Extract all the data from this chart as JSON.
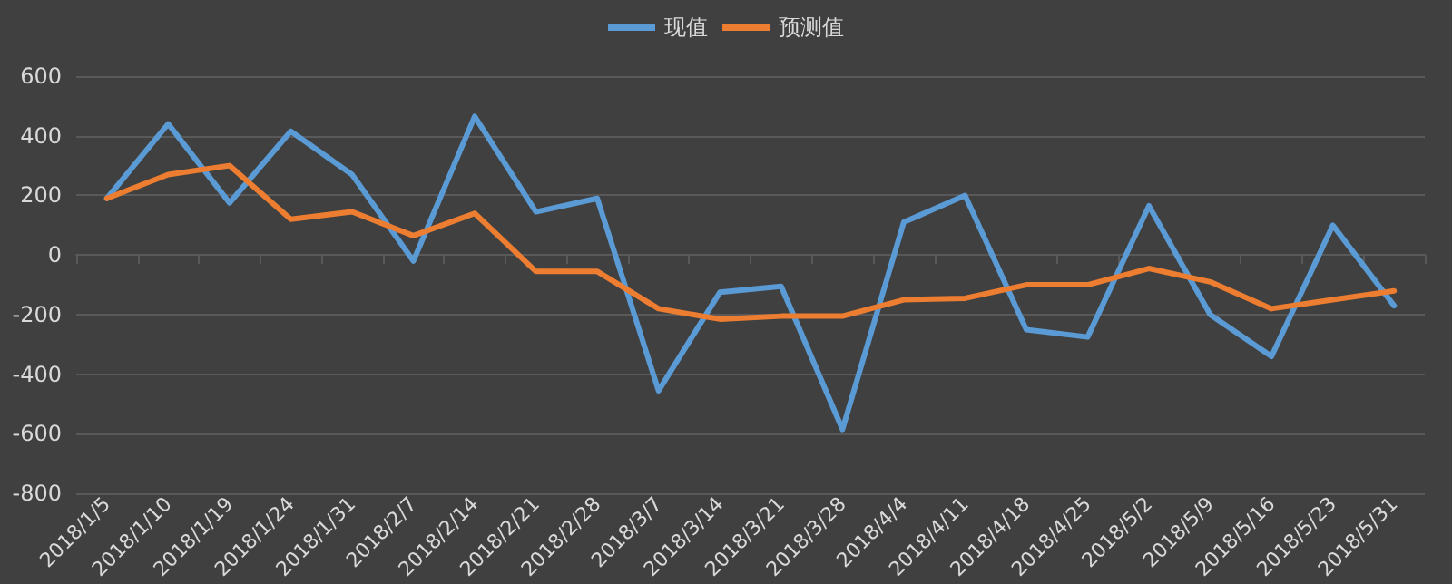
{
  "chart_data": {
    "type": "line",
    "categories": [
      "2018/1/5",
      "2018/1/10",
      "2018/1/19",
      "2018/1/24",
      "2018/1/31",
      "2018/2/7",
      "2018/2/14",
      "2018/2/21",
      "2018/2/28",
      "2018/3/7",
      "2018/3/14",
      "2018/3/21",
      "2018/3/28",
      "2018/4/4",
      "2018/4/11",
      "2018/4/18",
      "2018/4/25",
      "2018/5/2",
      "2018/5/9",
      "2018/5/16",
      "2018/5/23",
      "2018/5/31"
    ],
    "series": [
      {
        "name": "现值",
        "color": "#5b9bd5",
        "values": [
          190,
          440,
          175,
          415,
          270,
          -20,
          465,
          145,
          190,
          -455,
          -125,
          -105,
          -585,
          110,
          200,
          -250,
          -275,
          165,
          -200,
          -340,
          100,
          -170
        ]
      },
      {
        "name": "预测值",
        "color": "#ed7d31",
        "values": [
          190,
          270,
          300,
          120,
          145,
          65,
          140,
          -55,
          -55,
          -180,
          -215,
          -205,
          -205,
          -150,
          -145,
          -100,
          -100,
          -45,
          -90,
          -180,
          -150,
          -120
        ]
      }
    ],
    "ylim": [
      -800,
      600
    ],
    "yticks": [
      -800,
      -600,
      -400,
      -200,
      0,
      200,
      400,
      600
    ],
    "grid": "y",
    "legend": "top",
    "marker": "none",
    "line_style": "solid"
  }
}
